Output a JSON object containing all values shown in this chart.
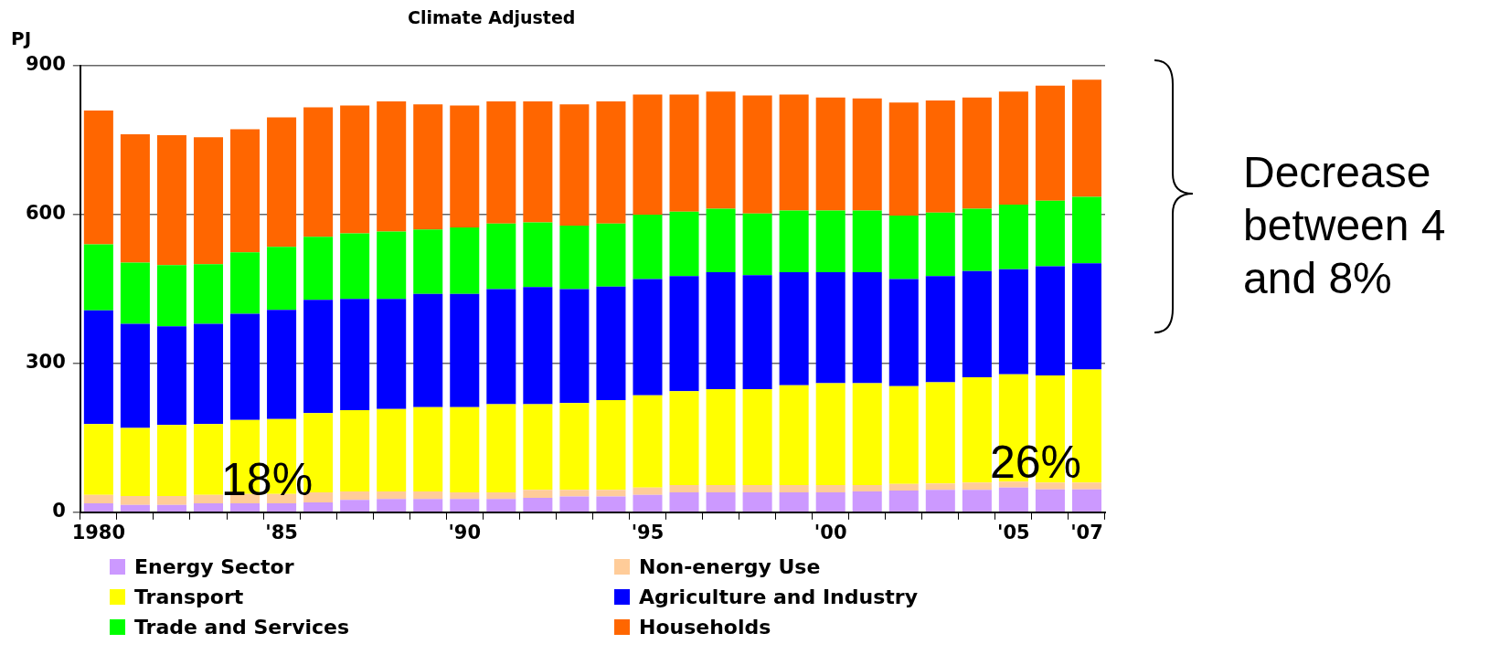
{
  "chart_data": {
    "type": "bar",
    "stacked": true,
    "title": "Climate Adjusted",
    "ylabel": "PJ",
    "categories": [
      "1980",
      null,
      null,
      null,
      null,
      "'85",
      null,
      null,
      null,
      null,
      "'90",
      null,
      null,
      null,
      null,
      "'95",
      null,
      null,
      null,
      null,
      "'00",
      null,
      null,
      null,
      null,
      "'05",
      null,
      "'07"
    ],
    "series": [
      {
        "name": "Energy Sector",
        "color": "#cc99ff",
        "values": [
          18,
          15,
          15,
          18,
          18,
          18,
          20,
          25,
          27,
          27,
          27,
          27,
          29,
          32,
          32,
          35,
          40,
          40,
          40,
          40,
          40,
          42,
          44,
          45,
          45,
          50,
          46,
          46
        ]
      },
      {
        "name": "Non-energy Use",
        "color": "#ffcc99",
        "values": [
          17,
          18,
          18,
          17,
          19,
          19,
          20,
          17,
          15,
          15,
          13,
          13,
          16,
          13,
          13,
          15,
          15,
          15,
          15,
          15,
          15,
          13,
          13,
          13,
          15,
          12,
          14,
          14
        ]
      },
      {
        "name": "Transport",
        "color": "#ffff00",
        "values": [
          143,
          137,
          143,
          143,
          149,
          151,
          160,
          164,
          166,
          170,
          172,
          178,
          173,
          175,
          181,
          186,
          189,
          193,
          193,
          201,
          205,
          205,
          197,
          204,
          212,
          216,
          216,
          228
        ]
      },
      {
        "name": "Agriculture and Industry",
        "color": "#0000ff",
        "values": [
          229,
          210,
          199,
          202,
          214,
          220,
          228,
          224,
          222,
          228,
          228,
          232,
          236,
          230,
          229,
          234,
          232,
          236,
          230,
          228,
          224,
          224,
          216,
          214,
          214,
          212,
          220,
          214
        ]
      },
      {
        "name": "Trade and Services",
        "color": "#00ff00",
        "values": [
          133,
          123,
          123,
          120,
          124,
          127,
          127,
          132,
          136,
          130,
          134,
          132,
          130,
          128,
          127,
          130,
          130,
          128,
          124,
          124,
          124,
          124,
          128,
          128,
          126,
          130,
          132,
          134
        ]
      },
      {
        "name": "Households",
        "color": "#ff6600",
        "values": [
          270,
          259,
          262,
          256,
          248,
          261,
          261,
          258,
          262,
          252,
          246,
          246,
          244,
          244,
          246,
          242,
          236,
          236,
          238,
          234,
          228,
          226,
          228,
          226,
          224,
          228,
          232,
          236
        ]
      }
    ],
    "ylim": [
      0,
      900
    ],
    "yticks": [
      0,
      300,
      600,
      900
    ],
    "grid": "y",
    "legend": "bottom",
    "annotations": [
      "18%",
      "26%",
      "Decrease between 4 and 8%"
    ]
  }
}
